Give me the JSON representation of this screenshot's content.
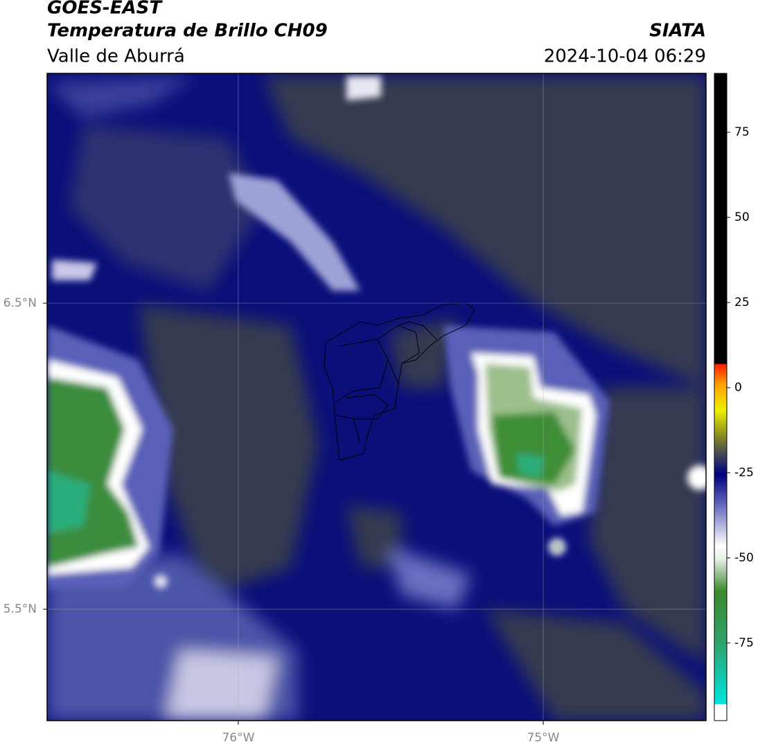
{
  "header": {
    "title": "GOES-EAST",
    "subtitle": "Temperatura de Brillo CH09",
    "source": "SIATA",
    "region": "Valle de Aburrá",
    "datetime": "2024-10-04 06:29"
  },
  "map": {
    "xlim": [
      -76.627,
      -74.466
    ],
    "ylim": [
      5.136,
      7.251
    ],
    "xticks": [
      {
        "value": -76,
        "label": "76°W"
      },
      {
        "value": -75,
        "label": "75°W"
      }
    ],
    "yticks": [
      {
        "value": 6.5,
        "label": "6.5°N"
      },
      {
        "value": 5.5,
        "label": "5.5°N"
      }
    ],
    "grid": true
  },
  "colorbar": {
    "lim": [
      -97.8,
      92.3
    ],
    "ticks": [
      75,
      50,
      25,
      0,
      -25,
      -50,
      -75
    ]
  }
}
